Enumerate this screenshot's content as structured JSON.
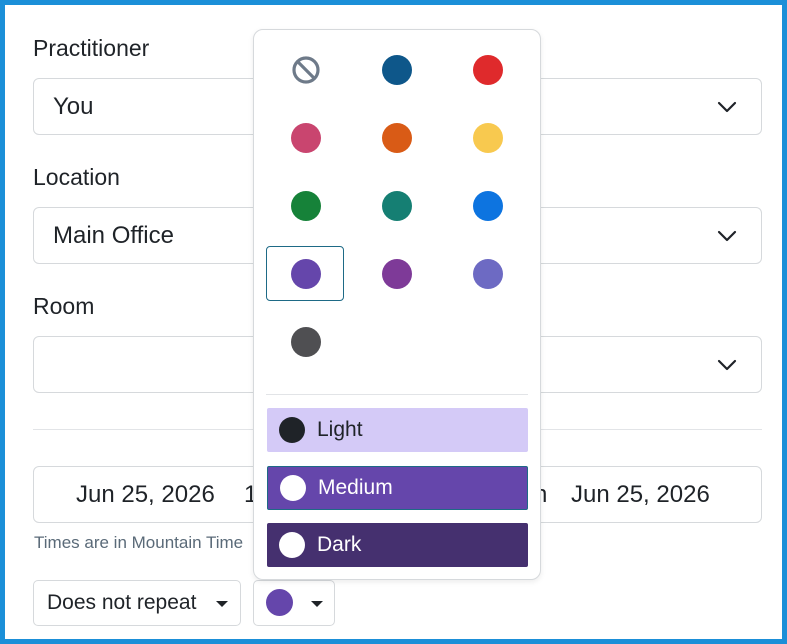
{
  "form": {
    "practitioner": {
      "label": "Practitioner",
      "value": "You"
    },
    "location": {
      "label": "Location",
      "value": "Main Office"
    },
    "room": {
      "label": "Room",
      "value": ""
    },
    "dates": {
      "start_date": "Jun 25, 2026",
      "start_time_partial": "1",
      "separator_partial": "n",
      "end_date": "Jun 25, 2026"
    },
    "timezone_note": "Times are in Mountain Time",
    "repeat": {
      "label": "Does not repeat"
    },
    "color_button": {
      "selected_color": "#6546ab"
    }
  },
  "color_picker": {
    "no_color_icon": "no-color-icon",
    "swatches": [
      {
        "name": "navy",
        "color": "#0e578a"
      },
      {
        "name": "red",
        "color": "#df2a2c"
      },
      {
        "name": "pink",
        "color": "#c9456f"
      },
      {
        "name": "orange",
        "color": "#d95b16"
      },
      {
        "name": "yellow",
        "color": "#f8c94f"
      },
      {
        "name": "green",
        "color": "#168239"
      },
      {
        "name": "teal",
        "color": "#157f73"
      },
      {
        "name": "blue",
        "color": "#0d74e0"
      },
      {
        "name": "purple",
        "color": "#6546ab",
        "selected": true
      },
      {
        "name": "magenta",
        "color": "#7e3a98"
      },
      {
        "name": "periwinkle",
        "color": "#6d6ac3"
      },
      {
        "name": "gray",
        "color": "#4f4f52"
      }
    ],
    "shades": [
      {
        "label": "Light",
        "background": "#d4caf7",
        "text_color": "#1f2328",
        "dot": "#1f2328"
      },
      {
        "label": "Medium",
        "background": "#6546ab",
        "text_color": "#ffffff",
        "dot": "#ffffff",
        "selected": true
      },
      {
        "label": "Dark",
        "background": "#45306f",
        "text_color": "#ffffff",
        "dot": "#ffffff"
      }
    ]
  }
}
